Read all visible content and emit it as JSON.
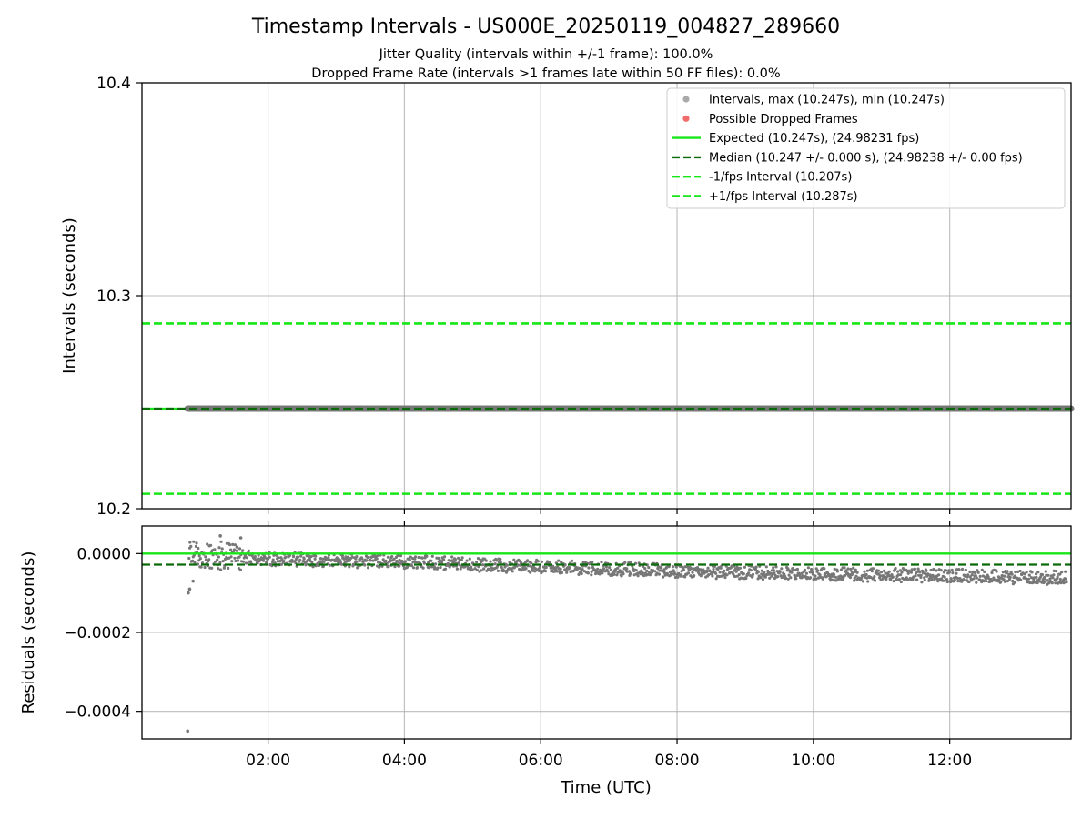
{
  "chart_data": [
    {
      "type": "scatter",
      "title": "Timestamp Intervals - US000E_20250119_004827_289660",
      "subtitle_1": "Jitter Quality (intervals within +/-1 frame): 100.0%",
      "subtitle_2": "Dropped Frame Rate (intervals >1 frames late within 50 FF files): 0.0%",
      "ylabel": "Intervals (seconds)",
      "ylim": [
        10.2,
        10.4
      ],
      "yticks": [
        "10.2",
        "10.3",
        "10.4"
      ],
      "xlim_hours": [
        0.15,
        13.78
      ],
      "grid": true,
      "legend_position": "top-right",
      "legend": [
        {
          "label": "Intervals, max (10.247s), min (10.247s)",
          "kind": "marker",
          "color": "#aaaaaa"
        },
        {
          "label": "Possible Dropped Frames",
          "kind": "marker",
          "color": "#f26b6b"
        },
        {
          "label": "Expected (10.247s), (24.98231 fps)",
          "kind": "solid",
          "color": "#17e617"
        },
        {
          "label": "Median (10.247 +/- 0.000 s), (24.98238 +/- 0.00 fps)",
          "kind": "dashed",
          "color": "#0b6b0b"
        },
        {
          "label": "-1/fps Interval (10.207s)",
          "kind": "dashed",
          "color": "#17e617"
        },
        {
          "label": "+1/fps Interval (10.287s)",
          "kind": "dashed",
          "color": "#17e617"
        }
      ],
      "reference_lines": {
        "expected": 10.247,
        "median": 10.247,
        "minus_one_fps": 10.207,
        "plus_one_fps": 10.287
      },
      "series": [
        {
          "name": "Intervals",
          "x_start_hours": 0.82,
          "x_end_hours": 13.78,
          "value": 10.247
        }
      ],
      "possible_dropped_frames": 0
    },
    {
      "type": "scatter",
      "ylabel": "Residuals (seconds)",
      "xlabel": "Time (UTC)",
      "ylim": [
        -0.00047,
        7e-05
      ],
      "yticks": [
        "0.0000",
        "−0.0002",
        "−0.0004"
      ],
      "xticks": [
        "02:00",
        "04:00",
        "06:00",
        "08:00",
        "10:00",
        "12:00"
      ],
      "xtick_hours": [
        2,
        4,
        6,
        8,
        10,
        12
      ],
      "xlim_hours": [
        0.15,
        13.78
      ],
      "grid": true,
      "reference_lines": {
        "expected": 0.0,
        "median": -2.8e-05
      },
      "residual_trend": [
        {
          "x": 0.82,
          "y": 2e-06
        },
        {
          "x": 2.0,
          "y": -1.2e-05
        },
        {
          "x": 4.0,
          "y": -2e-05
        },
        {
          "x": 6.0,
          "y": -3.2e-05
        },
        {
          "x": 8.0,
          "y": -4.2e-05
        },
        {
          "x": 10.0,
          "y": -5e-05
        },
        {
          "x": 12.0,
          "y": -5.5e-05
        },
        {
          "x": 13.7,
          "y": -6e-05
        }
      ],
      "outliers": [
        {
          "x": 0.82,
          "y": -0.00045
        },
        {
          "x": 0.83,
          "y": -0.0001
        },
        {
          "x": 0.85,
          "y": -9e-05
        },
        {
          "x": 0.9,
          "y": -7e-05
        },
        {
          "x": 1.3,
          "y": 4.5e-05
        },
        {
          "x": 1.6,
          "y": 4e-05
        }
      ]
    }
  ]
}
